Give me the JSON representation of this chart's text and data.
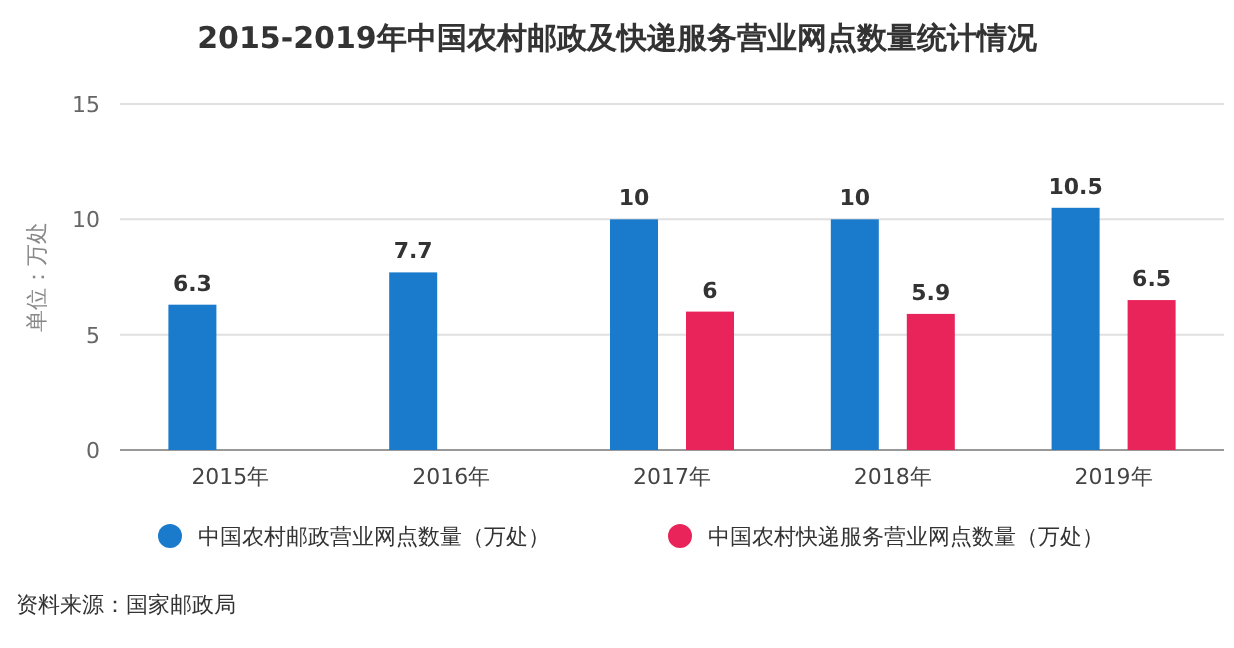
{
  "chart_data": {
    "type": "bar",
    "title": "2015-2019年中国农村邮政及快递服务营业网点数量统计情况",
    "ylabel": "单位：万处",
    "categories": [
      "2015年",
      "2016年",
      "2017年",
      "2018年",
      "2019年"
    ],
    "series": [
      {
        "name": "中国农村邮政营业网点数量（万处）",
        "color": "#1a7acb",
        "values": [
          6.3,
          7.7,
          10,
          10,
          10.5
        ]
      },
      {
        "name": "中国农村快递服务营业网点数量（万处）",
        "color": "#e8245a",
        "values": [
          null,
          null,
          6,
          5.9,
          6.5
        ]
      }
    ],
    "ylim": [
      0,
      15
    ],
    "yticks": [
      0,
      5,
      10,
      15
    ],
    "grid": "y",
    "legend": "bottom",
    "data_labels": true,
    "annotations": [
      "资料来源：国家邮政局"
    ]
  }
}
